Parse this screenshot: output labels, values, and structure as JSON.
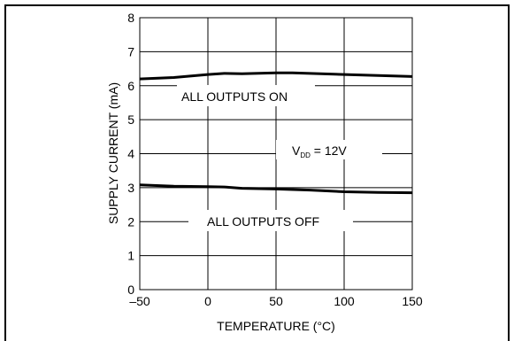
{
  "chart_data": {
    "type": "line",
    "xlabel": "TEMPERATURE (°C)",
    "ylabel": "SUPPLY CURRENT (mA)",
    "xlim": [
      -50,
      150
    ],
    "ylim": [
      0,
      8
    ],
    "x_ticks": [
      -50,
      0,
      50,
      100,
      150
    ],
    "x_tick_labels": [
      "–50",
      "0",
      "50",
      "100",
      "150"
    ],
    "y_ticks": [
      0,
      1,
      2,
      3,
      4,
      5,
      6,
      7,
      8
    ],
    "y_tick_labels": [
      "0",
      "1",
      "2",
      "3",
      "4",
      "5",
      "6",
      "7",
      "8"
    ],
    "grid": true,
    "series": [
      {
        "name": "ALL OUTPUTS ON",
        "x": [
          -50,
          -25,
          0,
          12,
          25,
          50,
          62,
          75,
          100,
          125,
          150
        ],
        "y": [
          6.2,
          6.24,
          6.33,
          6.36,
          6.35,
          6.38,
          6.38,
          6.36,
          6.33,
          6.3,
          6.27
        ]
      },
      {
        "name": "ALL OUTPUTS OFF",
        "x": [
          -50,
          -25,
          0,
          12,
          25,
          50,
          75,
          100,
          125,
          150
        ],
        "y": [
          3.08,
          3.04,
          3.03,
          3.02,
          2.98,
          2.96,
          2.93,
          2.88,
          2.86,
          2.85
        ]
      }
    ],
    "annotations": {
      "on_label": "ALL OUTPUTS ON",
      "off_label": "ALL OUTPUTS OFF",
      "vdd_prefix": "V",
      "vdd_sub": "DD",
      "vdd_suffix": " = 12V"
    },
    "colors": {
      "line": "#000000",
      "grid": "#000000",
      "frame": "#000000"
    }
  }
}
